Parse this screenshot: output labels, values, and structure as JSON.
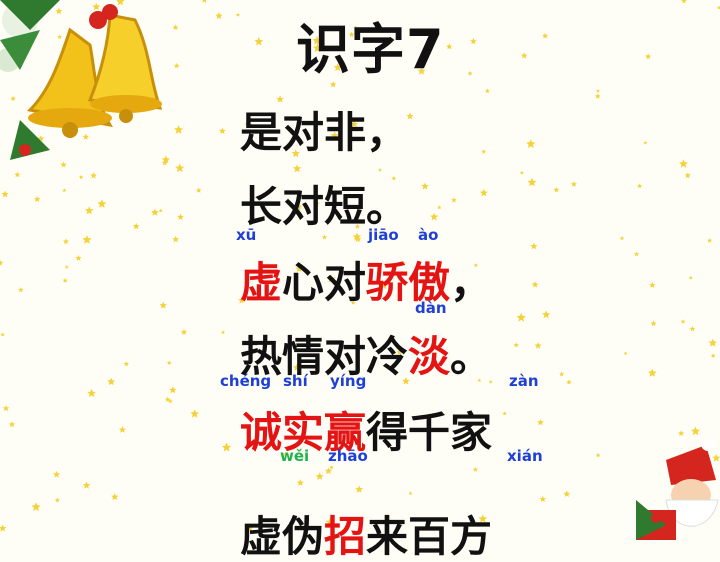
{
  "title": "识字7",
  "lines": [
    {
      "segments": [
        {
          "text": "是对非，"
        }
      ]
    },
    {
      "segments": [
        {
          "text": "长对短。"
        }
      ]
    },
    {
      "segments": [
        {
          "text": "虚",
          "color": "red"
        },
        {
          "text": "心对"
        },
        {
          "text": "骄傲",
          "color": "red"
        },
        {
          "text": "，"
        }
      ]
    },
    {
      "segments": [
        {
          "text": "热情对冷"
        },
        {
          "text": "淡",
          "color": "red"
        },
        {
          "text": "。"
        }
      ]
    },
    {
      "segments": [
        {
          "text": "诚实赢",
          "color": "red"
        },
        {
          "text": "得千家"
        }
      ]
    },
    {
      "segments": [
        {
          "text": "虚伪"
        },
        {
          "text": "招",
          "color": "red"
        },
        {
          "text": "来百方"
        }
      ]
    }
  ],
  "pinyin": [
    {
      "text": "xū",
      "color": "blue"
    },
    {
      "text": "jiāo",
      "color": "blue"
    },
    {
      "text": "ào",
      "color": "blue"
    },
    {
      "text": "dàn",
      "color": "blue"
    },
    {
      "text": "chéng",
      "color": "blue"
    },
    {
      "text": "shí",
      "color": "blue"
    },
    {
      "text": "yíng",
      "color": "blue"
    },
    {
      "text": "zàn",
      "color": "blue"
    },
    {
      "text": "wěi",
      "color": "green"
    },
    {
      "text": "zhāo",
      "color": "blue"
    },
    {
      "text": "xián",
      "color": "blue"
    }
  ],
  "colors": {
    "red": "#e41414",
    "blue": "#1e3fd8",
    "green": "#22b14c",
    "text": "#111111"
  },
  "decorations": [
    "golden-bells-with-holly",
    "santa-claus",
    "scattered-yellow-stars"
  ]
}
